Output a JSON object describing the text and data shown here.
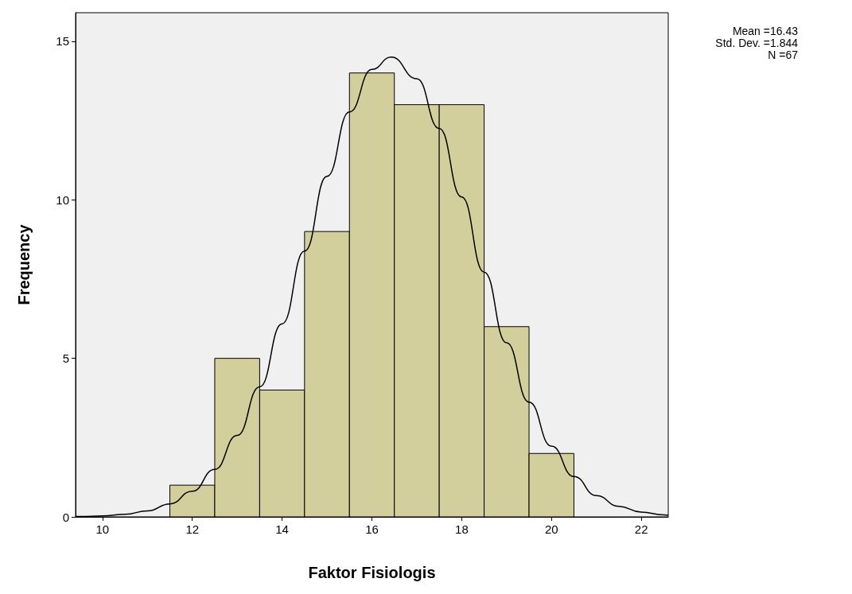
{
  "chart_data": {
    "type": "histogram",
    "xlabel": "Faktor Fisiologis",
    "ylabel": "Frequency",
    "bins": [
      11.5,
      12.5,
      13.5,
      14.5,
      15.5,
      16.5,
      17.5,
      18.5,
      19.5,
      20.5
    ],
    "values": [
      1,
      5,
      4,
      9,
      14,
      13,
      13,
      6,
      2
    ],
    "color": "#d3cf9c",
    "series": [
      {
        "type": "line",
        "color": "#000000",
        "x": [
          9.4,
          9.5,
          10,
          10.5,
          11,
          11.5,
          12,
          12.5,
          13,
          13.5,
          14,
          14.5,
          15,
          15.5,
          16,
          16.43,
          17,
          17.5,
          18,
          18.5,
          19,
          19.5,
          20,
          20.5,
          21,
          21.5,
          22,
          22.5,
          22.6
        ],
        "values": [
          0.01,
          0.01,
          0.03,
          0.08,
          0.19,
          0.41,
          0.81,
          1.5,
          2.57,
          4.1,
          6.09,
          8.38,
          10.74,
          12.77,
          14.11,
          14.5,
          13.82,
          12.25,
          10.09,
          7.72,
          5.49,
          3.62,
          2.23,
          1.27,
          0.67,
          0.33,
          0.15,
          0.06,
          0.05
        ]
      }
    ],
    "marker": "none",
    "xlim": [
      9.4,
      22.6
    ],
    "xticks": [
      10,
      12,
      14,
      16,
      18,
      20,
      22
    ],
    "ylim": [
      0,
      15.9
    ],
    "yticks": [
      0,
      5,
      10,
      15
    ],
    "grid": false,
    "annotations": [
      "Mean =16.43",
      "Std. Dev. =1.844",
      "N =67"
    ]
  }
}
